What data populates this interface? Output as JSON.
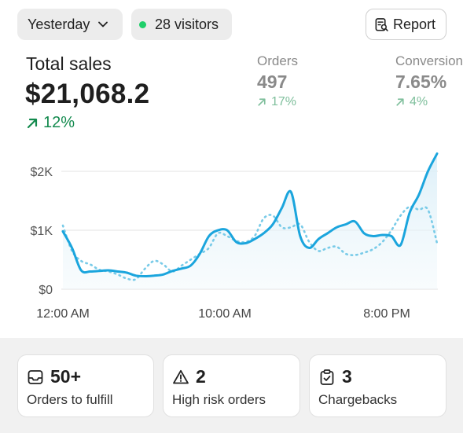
{
  "header": {
    "date_filter": "Yesterday",
    "visitors": "28 visitors",
    "report_label": "Report",
    "live_color": "#1fcf6a"
  },
  "summary": {
    "total_label": "Total sales",
    "total_value": "$21,068.2",
    "total_change": "12%",
    "orders_label": "Orders",
    "orders_value": "497",
    "orders_change": "17%",
    "conversion_label": "Conversion",
    "conversion_value": "7.65%",
    "conversion_change": "4%"
  },
  "chart_data": {
    "type": "line",
    "y_ticks": [
      "$2K",
      "$1K",
      "$0"
    ],
    "x_ticks": [
      "12:00 AM",
      "10:00 AM",
      "8:00 PM"
    ],
    "ylim": [
      0,
      2300
    ],
    "series": [
      {
        "style": "solid",
        "color": "#1ba5dd",
        "values": [
          980,
          700,
          320,
          300,
          310,
          320,
          300,
          280,
          230,
          220,
          230,
          250,
          310,
          350,
          400,
          600,
          900,
          1000,
          1000,
          800,
          780,
          850,
          950,
          1100,
          1380,
          1650,
          900,
          700,
          850,
          950,
          1050,
          1100,
          1150,
          950,
          900,
          920,
          900,
          750,
          1300,
          1600,
          2000,
          2300
        ]
      },
      {
        "style": "dotted",
        "color": "#79cbe8",
        "values": [
          1080,
          650,
          480,
          420,
          330,
          300,
          250,
          180,
          170,
          350,
          480,
          420,
          300,
          400,
          500,
          600,
          700,
          950,
          900,
          820,
          800,
          900,
          1200,
          1250,
          1050,
          1050,
          1100,
          800,
          650,
          700,
          720,
          600,
          580,
          620,
          680,
          800,
          1000,
          1250,
          1400,
          1350,
          1350,
          780
        ]
      }
    ]
  },
  "cards": [
    {
      "count": "50+",
      "label": "Orders to fulfill",
      "icon": "inbox-icon"
    },
    {
      "count": "2",
      "label": "High risk orders",
      "icon": "warning-icon"
    },
    {
      "count": "3",
      "label": "Chargebacks",
      "icon": "clipboard-check-icon"
    }
  ]
}
